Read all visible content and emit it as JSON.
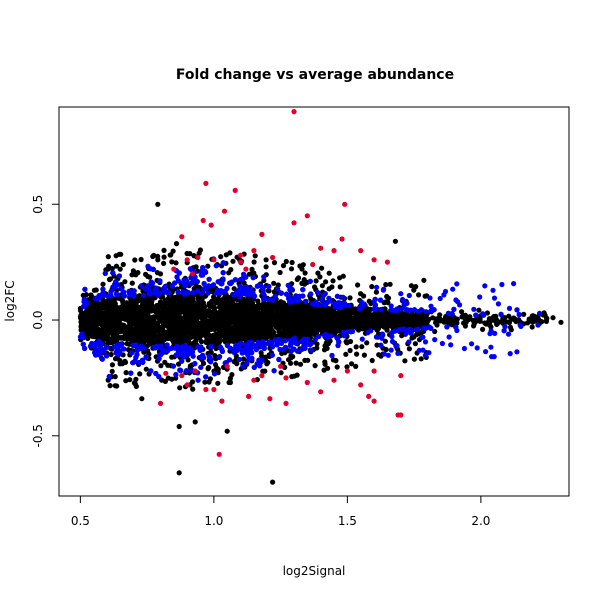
{
  "chart_data": {
    "type": "scatter",
    "title": "Fold change vs average abundance",
    "xlabel": "log2Signal",
    "ylabel": "log2FC",
    "xlim": [
      0.42,
      2.33
    ],
    "ylim": [
      -0.76,
      0.92
    ],
    "x_ticks": [
      0.5,
      1.0,
      1.5,
      2.0
    ],
    "x_tick_labels": [
      "0.5",
      "1.0",
      "1.5",
      "2.0"
    ],
    "y_ticks": [
      -0.5,
      0.0,
      0.5
    ],
    "y_tick_labels": [
      "-0.5",
      "0.0",
      "0.5"
    ],
    "grid": false,
    "legend": "none",
    "colors": {
      "base": "#000000",
      "highlight_blue": "#0000ff",
      "highlight_red": "#e0002a"
    },
    "series": [
      {
        "color": "#e0002a",
        "points": [
          [
            1.3,
            0.9
          ],
          [
            0.97,
            0.59
          ],
          [
            1.08,
            0.56
          ],
          [
            1.49,
            0.5
          ],
          [
            1.04,
            0.47
          ],
          [
            0.96,
            0.43
          ],
          [
            1.35,
            0.45
          ],
          [
            0.99,
            0.41
          ],
          [
            1.3,
            0.42
          ],
          [
            1.18,
            0.37
          ],
          [
            0.88,
            0.36
          ],
          [
            1.48,
            0.35
          ],
          [
            1.45,
            0.3
          ],
          [
            1.6,
            0.26
          ],
          [
            1.65,
            0.25
          ],
          [
            1.0,
            0.26
          ],
          [
            0.94,
            0.27
          ],
          [
            0.9,
            0.26
          ],
          [
            1.1,
            0.25
          ],
          [
            1.22,
            0.27
          ],
          [
            0.85,
            0.22
          ],
          [
            1.12,
            0.22
          ],
          [
            1.37,
            0.24
          ],
          [
            1.05,
            -0.2
          ],
          [
            0.93,
            -0.22
          ],
          [
            0.82,
            -0.23
          ],
          [
            1.18,
            -0.24
          ],
          [
            1.27,
            -0.25
          ],
          [
            0.9,
            -0.28
          ],
          [
            1.0,
            -0.3
          ],
          [
            1.35,
            -0.27
          ],
          [
            1.45,
            -0.26
          ],
          [
            1.55,
            -0.28
          ],
          [
            1.6,
            -0.22
          ],
          [
            1.7,
            -0.24
          ],
          [
            1.13,
            -0.33
          ],
          [
            1.21,
            -0.34
          ],
          [
            0.8,
            -0.36
          ],
          [
            1.03,
            -0.35
          ],
          [
            1.58,
            -0.33
          ],
          [
            1.69,
            -0.41
          ],
          [
            1.7,
            -0.41
          ],
          [
            1.27,
            -0.36
          ],
          [
            1.02,
            -0.58
          ],
          [
            0.97,
            -0.3
          ],
          [
            1.4,
            -0.31
          ],
          [
            1.5,
            -0.22
          ],
          [
            1.25,
            -0.2
          ],
          [
            0.88,
            -0.24
          ],
          [
            1.15,
            -0.26
          ],
          [
            1.1,
            0.28
          ],
          [
            1.15,
            0.3
          ],
          [
            1.4,
            0.31
          ],
          [
            1.55,
            0.3
          ],
          [
            0.92,
            0.2
          ],
          [
            1.6,
            -0.35
          ]
        ]
      }
    ]
  }
}
